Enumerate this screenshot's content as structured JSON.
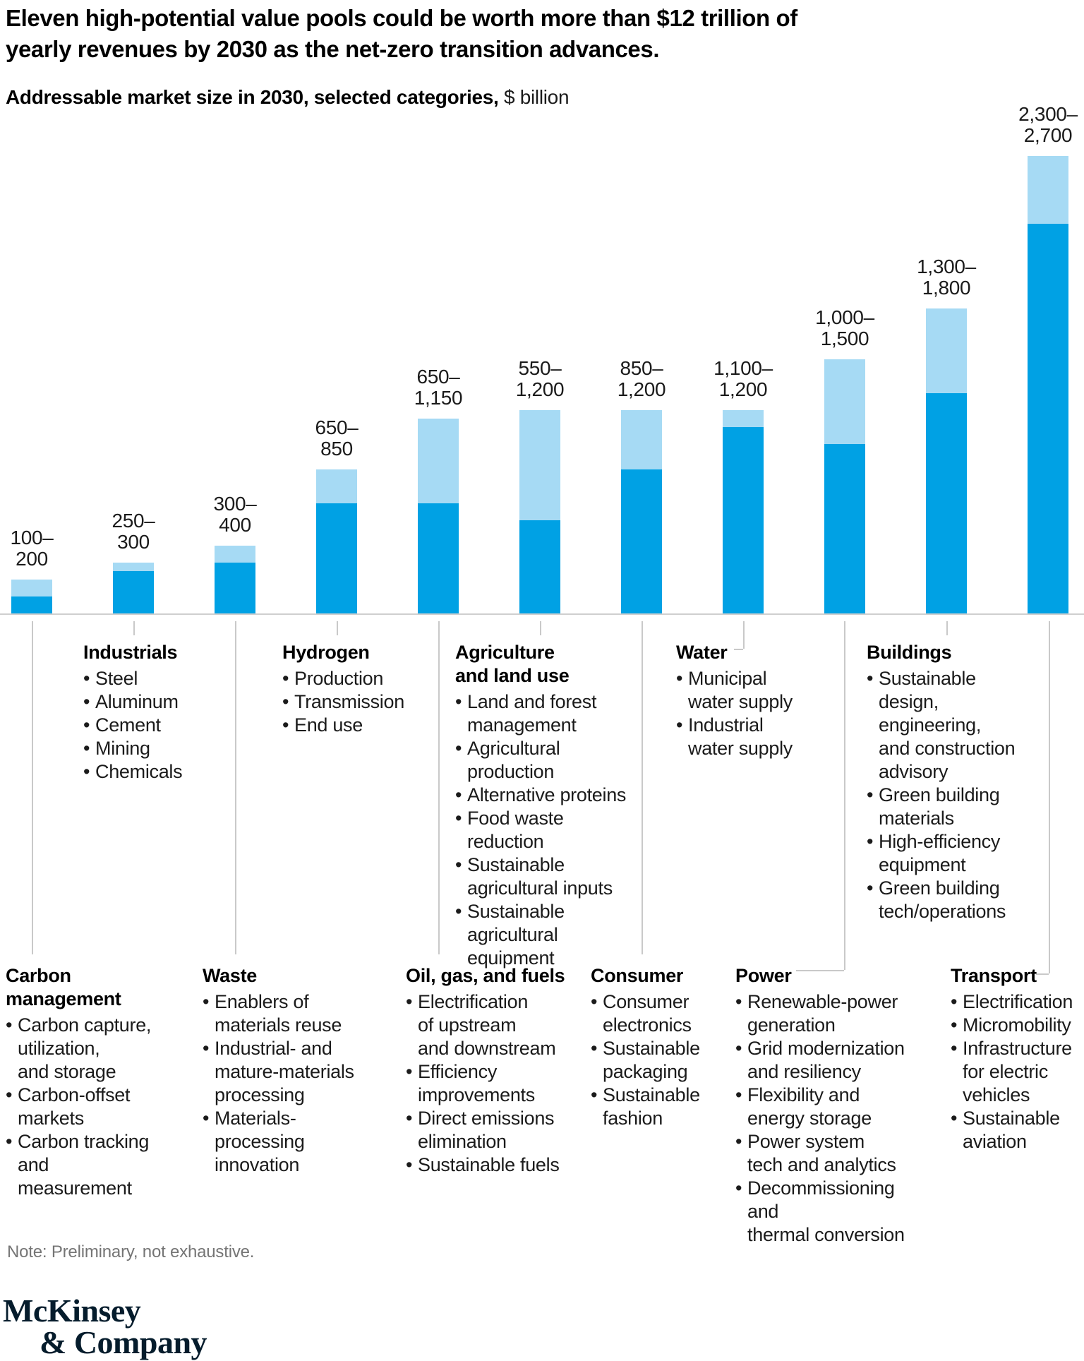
{
  "title": "Eleven high-potential value pools could be worth more than $12 trillion of\nyearly revenues by 2030 as the net-zero transition advances.",
  "subtitle": {
    "bold": "Addressable market size in 2030, selected categories,",
    "unit": " $ billion"
  },
  "note": "Note: Preliminary, not exhaustive.",
  "logo": {
    "line1": "McKinsey",
    "line2": "& Company"
  },
  "colors": {
    "bar_low": "#00A1E4",
    "bar_high": "#A6DAF4",
    "leader_line": "#C9C9C9",
    "logo_navy": "#051C2C"
  },
  "chart_data": {
    "type": "bar",
    "stacked": true,
    "title": "Addressable market size in 2030, selected categories",
    "unit": "$ billion",
    "ylim": [
      0,
      2700
    ],
    "grid": false,
    "legend": "none",
    "categories": [
      "Carbon management",
      "Industrials",
      "Waste",
      "Hydrogen",
      "Oil, gas, and fuels",
      "Agriculture and land use",
      "Consumer",
      "Water",
      "Power",
      "Buildings",
      "Transport"
    ],
    "series": [
      {
        "name": "Lower bound (dark blue)",
        "values": [
          100,
          250,
          300,
          650,
          650,
          550,
          850,
          1100,
          1000,
          1300,
          2300
        ]
      },
      {
        "name": "Upper bound (light blue)",
        "values": [
          200,
          300,
          400,
          850,
          1150,
          1200,
          1200,
          1200,
          1500,
          1800,
          2700
        ]
      }
    ],
    "value_labels": [
      "100–200",
      "250–300",
      "300–400",
      "650–850",
      "650–1,150",
      "550–1,200",
      "850–1,200",
      "1,100–1,200",
      "1,000–1,500",
      "1,300–1,800",
      "2,300–2,700"
    ]
  },
  "pools": [
    {
      "id": "carbon-management",
      "name": "Carbon\nmanagement",
      "range_label": "100–\n200",
      "low": 100,
      "high": 200,
      "items": [
        "Carbon capture,\nutilization,\nand storage",
        "Carbon-offset\nmarkets",
        "Carbon tracking\nand measurement"
      ]
    },
    {
      "id": "industrials",
      "name": "Industrials",
      "range_label": "250–\n300",
      "low": 250,
      "high": 300,
      "items": [
        "Steel",
        "Aluminum",
        "Cement",
        "Mining",
        "Chemicals"
      ]
    },
    {
      "id": "waste",
      "name": "Waste",
      "range_label": "300–\n400",
      "low": 300,
      "high": 400,
      "items": [
        "Enablers of\nmaterials reuse",
        "Industrial- and\nmature-materials\nprocessing",
        "Materials-\nprocessing\ninnovation"
      ]
    },
    {
      "id": "hydrogen",
      "name": "Hydrogen",
      "range_label": "650–\n850",
      "low": 650,
      "high": 850,
      "items": [
        "Production",
        "Transmission",
        "End use"
      ]
    },
    {
      "id": "oil-gas-and-fuels",
      "name": "Oil, gas, and fuels",
      "range_label": "650–\n1,150",
      "low": 650,
      "high": 1150,
      "items": [
        "Electrification\nof upstream\nand downstream",
        "Efficiency\nimprovements",
        "Direct emissions\nelimination",
        "Sustainable fuels"
      ]
    },
    {
      "id": "agriculture-and-land-use",
      "name": "Agriculture\nand land use",
      "range_label": "550–\n1,200",
      "low": 550,
      "high": 1200,
      "items": [
        "Land and forest\nmanagement",
        "Agricultural\nproduction",
        "Alternative proteins",
        "Food waste reduction",
        "Sustainable\nagricultural inputs",
        "Sustainable\nagricultural\nequipment"
      ]
    },
    {
      "id": "consumer",
      "name": "Consumer",
      "range_label": "850–\n1,200",
      "low": 850,
      "high": 1200,
      "items": [
        "Consumer\nelectronics",
        "Sustainable\npackaging",
        "Sustainable\nfashion"
      ]
    },
    {
      "id": "water",
      "name": "Water",
      "range_label": "1,100–\n1,200",
      "low": 1100,
      "high": 1200,
      "items": [
        "Municipal\nwater supply",
        "Industrial\nwater supply"
      ]
    },
    {
      "id": "power",
      "name": "Power",
      "range_label": "1,000–\n1,500",
      "low": 1000,
      "high": 1500,
      "items": [
        "Renewable-power\ngeneration",
        "Grid modernization\nand resiliency",
        "Flexibility and\nenergy storage",
        "Power system\ntech and analytics",
        "Decommissioning and\nthermal conversion"
      ]
    },
    {
      "id": "buildings",
      "name": "Buildings",
      "range_label": "1,300–\n1,800",
      "low": 1300,
      "high": 1800,
      "items": [
        "Sustainable\ndesign, engineering,\nand construction\nadvisory",
        "Green building\nmaterials",
        "High-efficiency\nequipment",
        "Green building\ntech/operations"
      ]
    },
    {
      "id": "transport",
      "name": "Transport",
      "range_label": "2,300–\n2,700",
      "low": 2300,
      "high": 2700,
      "items": [
        "Electrification",
        "Micromobility",
        "Infrastructure\nfor electric\nvehicles",
        "Sustainable\naviation"
      ]
    }
  ]
}
